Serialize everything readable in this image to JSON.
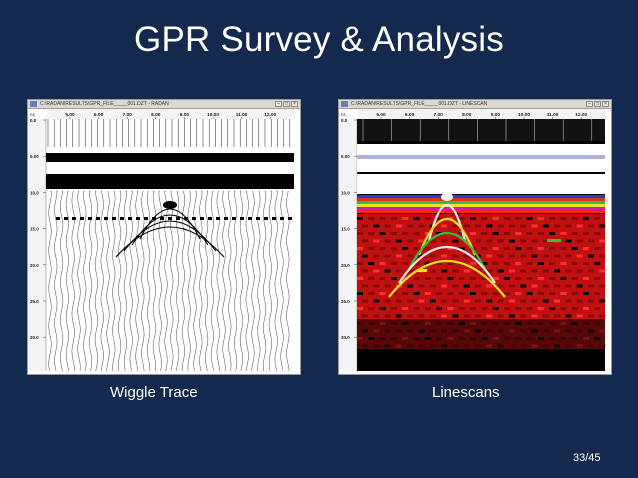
{
  "slide": {
    "title": "GPR Survey & Analysis",
    "page_number": "33/45"
  },
  "panels": [
    {
      "caption": "Wiggle Trace",
      "window_title": "C:\\RADAN\\RESULTS\\GPR_FILE_____001.DZT - RADAN",
      "x_ticks": [
        "5.00",
        "6.00",
        "7.00",
        "8.00",
        "9.00",
        "10.00",
        "11.00",
        "12.00"
      ],
      "y_ticks": [
        "0.0",
        "5.00",
        "10.0",
        "15.0",
        "20.0",
        "25.0",
        "30.0"
      ],
      "y_unit": "ns",
      "display": "wiggle"
    },
    {
      "caption": "Linescans",
      "window_title": "C:\\RADAN\\RESULTS\\GPR_FILE_____001.DZT - LINESCAN",
      "x_ticks": [
        "5.00",
        "6.00",
        "7.00",
        "8.00",
        "9.00",
        "10.00",
        "11.00",
        "12.00"
      ],
      "y_ticks": [
        "0.0",
        "5.00",
        "10.0",
        "15.0",
        "20.0",
        "25.0",
        "30.0"
      ],
      "y_unit": "ns",
      "display": "linescan"
    }
  ],
  "colors": {
    "background": "#13294d",
    "text": "#ffffff",
    "window_chrome": "#d4d0c8"
  }
}
